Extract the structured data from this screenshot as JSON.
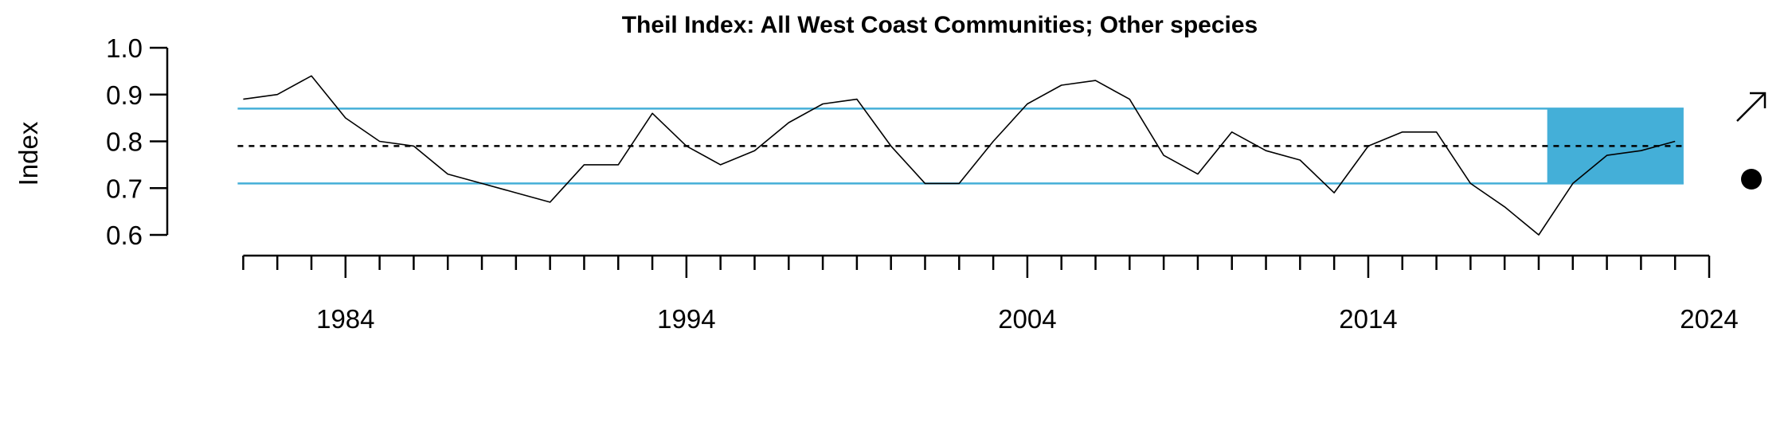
{
  "chart_data": {
    "type": "line",
    "title": "Theil Index: All West Coast Communities; Other species",
    "xlabel": "",
    "ylabel": "Index",
    "xlim": [
      1980.5,
      2024
    ],
    "ylim": [
      0.6,
      1.0
    ],
    "y_ticks": [
      0.6,
      0.7,
      0.8,
      0.9,
      1.0
    ],
    "y_tick_labels": [
      "0.6",
      "0.7",
      "0.8",
      "0.9",
      "1.0"
    ],
    "x_major_ticks": [
      1984,
      1994,
      2004,
      2014,
      2024
    ],
    "x_major_labels": [
      "1984",
      "1994",
      "2004",
      "2014",
      "2024"
    ],
    "x_minor_ticks": [
      1981,
      1982,
      1983,
      1985,
      1986,
      1987,
      1988,
      1989,
      1990,
      1991,
      1992,
      1993,
      1995,
      1996,
      1997,
      1998,
      1999,
      2000,
      2001,
      2002,
      2003,
      2005,
      2006,
      2007,
      2008,
      2009,
      2010,
      2011,
      2012,
      2013,
      2015,
      2016,
      2017,
      2018,
      2019,
      2020,
      2021,
      2022,
      2023
    ],
    "series": [
      {
        "x": [
          1981,
          1982,
          1983,
          1984,
          1985,
          1986,
          1987,
          1988,
          1989,
          1990,
          1991,
          1992,
          1993,
          1994,
          1995,
          1996,
          1997,
          1998,
          1999,
          2000,
          2001,
          2002,
          2003,
          2004,
          2005,
          2006,
          2007,
          2008,
          2009,
          2010,
          2011,
          2012,
          2013,
          2014,
          2015,
          2016,
          2017,
          2018,
          2019,
          2020,
          2021,
          2022,
          2023
        ],
        "values": [
          0.89,
          0.9,
          0.94,
          0.85,
          0.8,
          0.79,
          0.73,
          0.71,
          0.69,
          0.67,
          0.75,
          0.75,
          0.86,
          0.79,
          0.75,
          0.78,
          0.84,
          0.88,
          0.89,
          0.79,
          0.71,
          0.71,
          0.8,
          0.88,
          0.92,
          0.93,
          0.89,
          0.77,
          0.73,
          0.82,
          0.78,
          0.76,
          0.69,
          0.79,
          0.82,
          0.82,
          0.71,
          0.66,
          0.6,
          0.71,
          0.77,
          0.78,
          0.8
        ],
        "color": "#000000"
      }
    ],
    "mean": 0.79,
    "upper_sd": 0.87,
    "lower_sd": 0.71,
    "highlight_x": [
      2019.25,
      2023.25
    ],
    "band_color": "#44afd8",
    "trend_symbol": "arrow-up-right",
    "recent_vs_mean_symbol": "filled-circle"
  }
}
